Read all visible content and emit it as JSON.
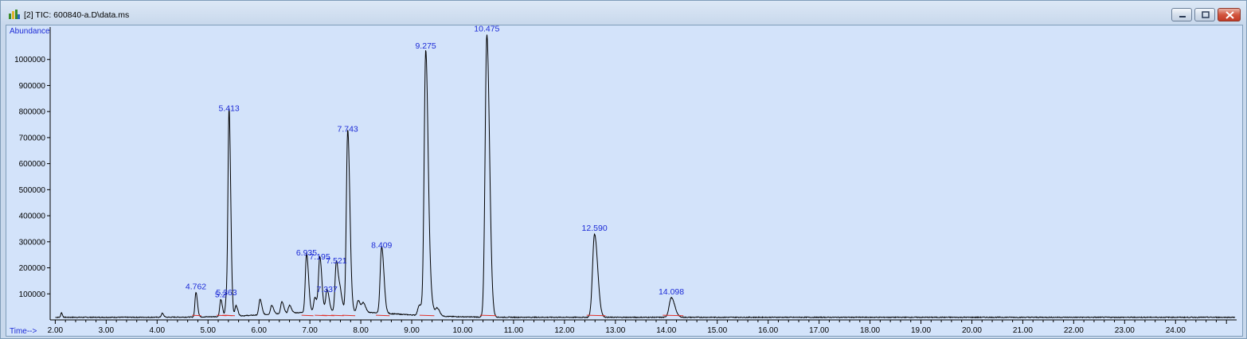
{
  "window": {
    "title": "[2] TIC: 600840-a.D\\data.ms"
  },
  "chart_data": {
    "type": "line",
    "ylabel": "Abundance",
    "xlabel": "Time-->",
    "xlim": [
      1.9,
      25.2
    ],
    "ylim": [
      0,
      1100000
    ],
    "x_ticks": [
      "2.00",
      "3.00",
      "4.00",
      "5.00",
      "6.00",
      "7.00",
      "8.00",
      "9.00",
      "10.00",
      "11.00",
      "12.00",
      "13.00",
      "14.00",
      "15.00",
      "16.00",
      "17.00",
      "18.00",
      "19.00",
      "20.00",
      "21.00",
      "22.00",
      "23.00",
      "24.00"
    ],
    "y_ticks": [
      "100000",
      "200000",
      "300000",
      "400000",
      "500000",
      "600000",
      "700000",
      "800000",
      "900000",
      "1000000"
    ],
    "grid": false,
    "baseline": 10000,
    "peaks": [
      {
        "rt": 4.762,
        "height": 95000,
        "label": "4.762"
      },
      {
        "rt": 5.25,
        "height": 65000,
        "label": "5.2"
      },
      {
        "rt": 5.363,
        "height": 72000,
        "label": "5.363"
      },
      {
        "rt": 5.413,
        "height": 780000,
        "label": "5.413"
      },
      {
        "rt": 6.935,
        "height": 225000,
        "label": "6.935"
      },
      {
        "rt": 7.195,
        "height": 210000,
        "label": "7.195"
      },
      {
        "rt": 7.337,
        "height": 85000,
        "label": "7.337"
      },
      {
        "rt": 7.521,
        "height": 195000,
        "label": "7.521"
      },
      {
        "rt": 7.743,
        "height": 700000,
        "label": "7.743"
      },
      {
        "rt": 8.409,
        "height": 255000,
        "label": "8.409"
      },
      {
        "rt": 9.275,
        "height": 1020000,
        "label": "9.275"
      },
      {
        "rt": 10.475,
        "height": 1085000,
        "label": "10.475"
      },
      {
        "rt": 12.59,
        "height": 320000,
        "label": "12.590"
      },
      {
        "rt": 14.098,
        "height": 75000,
        "label": "14.098"
      }
    ],
    "minor_peaks": [
      {
        "rt": 2.12,
        "height": 18000
      },
      {
        "rt": 4.1,
        "height": 15000
      },
      {
        "rt": 5.55,
        "height": 40000
      },
      {
        "rt": 6.02,
        "height": 60000
      },
      {
        "rt": 6.25,
        "height": 35000
      },
      {
        "rt": 6.45,
        "height": 45000
      },
      {
        "rt": 6.6,
        "height": 30000
      },
      {
        "rt": 7.1,
        "height": 55000
      },
      {
        "rt": 7.6,
        "height": 60000
      },
      {
        "rt": 7.95,
        "height": 45000
      },
      {
        "rt": 8.05,
        "height": 35000
      },
      {
        "rt": 9.15,
        "height": 40000
      },
      {
        "rt": 9.38,
        "height": 45000
      },
      {
        "rt": 9.5,
        "height": 30000
      }
    ],
    "colors": {
      "trace": "#000000",
      "label": "#1c2ad6",
      "integration": "#e0312a",
      "background": "#d3e3fa"
    }
  }
}
